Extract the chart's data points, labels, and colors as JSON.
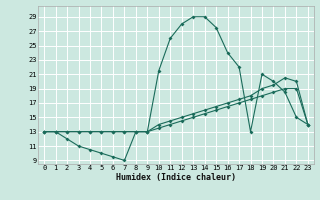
{
  "xlabel": "Humidex (Indice chaleur)",
  "bg_color": "#cce8e0",
  "grid_color": "#ffffff",
  "line_color": "#1a6b5a",
  "xlim": [
    -0.5,
    23.5
  ],
  "ylim": [
    8.5,
    30.5
  ],
  "xticks": [
    0,
    1,
    2,
    3,
    4,
    5,
    6,
    7,
    8,
    9,
    10,
    11,
    12,
    13,
    14,
    15,
    16,
    17,
    18,
    19,
    20,
    21,
    22,
    23
  ],
  "yticks": [
    9,
    11,
    13,
    15,
    17,
    19,
    21,
    23,
    25,
    27,
    29
  ],
  "curve1_x": [
    0,
    1,
    2,
    3,
    4,
    5,
    6,
    7,
    8,
    9,
    10,
    11,
    12,
    13,
    14,
    15,
    16,
    17,
    18,
    19,
    20,
    21,
    22,
    23
  ],
  "curve1_y": [
    13,
    13,
    12,
    11,
    10.5,
    10,
    9.5,
    9,
    13,
    13,
    21.5,
    26,
    28,
    29,
    29,
    27.5,
    24,
    22,
    13,
    21,
    20,
    18.5,
    15,
    14
  ],
  "curve2_x": [
    0,
    1,
    2,
    3,
    4,
    5,
    6,
    7,
    8,
    9,
    10,
    11,
    12,
    13,
    14,
    15,
    16,
    17,
    18,
    19,
    20,
    21,
    22,
    23
  ],
  "curve2_y": [
    13,
    13,
    13,
    13,
    13,
    13,
    13,
    13,
    13,
    13,
    14,
    14.5,
    15,
    15.5,
    16,
    16.5,
    17,
    17.5,
    18,
    19,
    19.5,
    20.5,
    20,
    14
  ],
  "curve3_x": [
    0,
    1,
    2,
    3,
    4,
    5,
    6,
    7,
    8,
    9,
    10,
    11,
    12,
    13,
    14,
    15,
    16,
    17,
    18,
    19,
    20,
    21,
    22,
    23
  ],
  "curve3_y": [
    13,
    13,
    13,
    13,
    13,
    13,
    13,
    13,
    13,
    13,
    13.5,
    14,
    14.5,
    15,
    15.5,
    16,
    16.5,
    17,
    17.5,
    18,
    18.5,
    19,
    19,
    14
  ],
  "marker": "D",
  "markersize": 2.0,
  "linewidth": 0.8,
  "tick_fontsize": 5.0,
  "xlabel_fontsize": 6.0
}
